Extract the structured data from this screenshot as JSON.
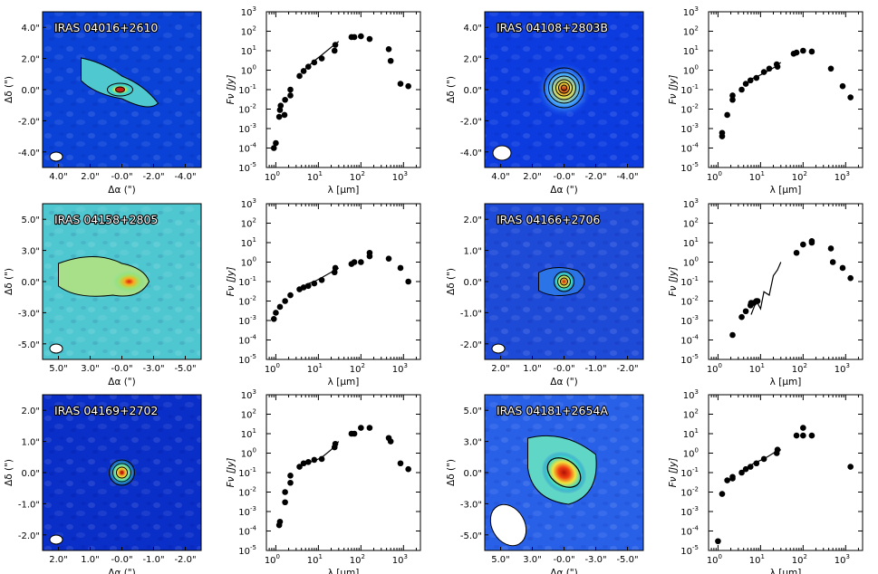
{
  "figure": {
    "image_xlabel": "Δα (\")",
    "image_ylabel": "Δδ (\")",
    "sed_xlabel": "λ [μm]",
    "sed_ylabel": "F_ν [Jy]",
    "colors": {
      "map_low": "#0a2ec8",
      "map_mid": "#3ad9c9",
      "map_high": "#f4e33a",
      "map_peak": "#c61e0e",
      "contour": "#000000",
      "marker": "#000000"
    }
  },
  "panels": [
    {
      "source": "IRAS 04016+2610",
      "xticks": [
        "4.0\"",
        "2.0\"",
        "-0.0\"",
        "-2.0\"",
        "-4.0\""
      ],
      "yticks": [
        "4.0\"",
        "2.0\"",
        "0.0\"",
        "-2.0\"",
        "-4.0\""
      ]
    },
    {
      "source": "IRAS 04108+2803B",
      "xticks": [
        "4.0\"",
        "2.0\"",
        "-0.0\"",
        "-2.0\"",
        "-4.0\""
      ],
      "yticks": [
        "4.0\"",
        "2.0\"",
        "0.0\"",
        "-2.0\"",
        "-4.0\""
      ]
    },
    {
      "source": "IRAS 04158+2805",
      "xticks": [
        "5.0\"",
        "3.0\"",
        "-0.0\"",
        "-3.0\"",
        "-5.0\""
      ],
      "yticks": [
        "5.0\"",
        "3.0\"",
        "0.0\"",
        "-3.0\"",
        "-5.0\""
      ]
    },
    {
      "source": "IRAS 04166+2706",
      "xticks": [
        "2.0\"",
        "1.0\"",
        "-0.0\"",
        "-1.0\"",
        "-2.0\""
      ],
      "yticks": [
        "2.0\"",
        "1.0\"",
        "0.0\"",
        "-1.0\"",
        "-2.0\""
      ]
    },
    {
      "source": "IRAS 04169+2702",
      "xticks": [
        "2.0\"",
        "1.0\"",
        "-0.0\"",
        "-1.0\"",
        "-2.0\""
      ],
      "yticks": [
        "2.0\"",
        "1.0\"",
        "0.0\"",
        "-1.0\"",
        "-2.0\""
      ]
    },
    {
      "source": "IRAS 04181+2654A",
      "xticks": [
        "5.0\"",
        "3.0\"",
        "-0.0\"",
        "-3.0\"",
        "-5.0\""
      ],
      "yticks": [
        "5.0\"",
        "3.0\"",
        "0.0\"",
        "-3.0\"",
        "-5.0\""
      ]
    }
  ],
  "chart_data": [
    {
      "type": "scatter",
      "panel": "IRAS 04016+2610",
      "xscale": "log",
      "yscale": "log",
      "xlabel": "λ [μm]",
      "ylabel": "F_ν [Jy]",
      "xlim": [
        0.6,
        2500
      ],
      "ylim": [
        1e-05,
        1000
      ],
      "x": [
        0.9,
        1.0,
        1.2,
        1.25,
        1.3,
        1.6,
        1.65,
        2.2,
        2.2,
        3.6,
        4.5,
        5.8,
        8.0,
        12,
        24,
        25,
        60,
        70,
        100,
        160,
        450,
        500,
        850,
        1300
      ],
      "y": [
        0.0001,
        0.00018,
        0.004,
        0.009,
        0.015,
        0.005,
        0.03,
        0.1,
        0.05,
        0.5,
        0.9,
        1.5,
        2.5,
        4,
        10,
        20,
        50,
        50,
        55,
        40,
        12,
        3,
        0.2,
        0.15
      ],
      "spectrum": {
        "x": [
          5,
          8,
          12,
          20,
          30
        ],
        "y": [
          1.2,
          3,
          6,
          15,
          30
        ]
      }
    },
    {
      "type": "scatter",
      "panel": "IRAS 04108+2803B",
      "xscale": "log",
      "yscale": "log",
      "xlabel": "λ [μm]",
      "ylabel": "F_ν [Jy]",
      "xlim": [
        0.6,
        2500
      ],
      "ylim": [
        1e-05,
        1000
      ],
      "x": [
        1.25,
        1.25,
        1.65,
        2.2,
        2.2,
        3.6,
        4.5,
        5.8,
        8.0,
        12,
        16,
        24,
        25,
        60,
        70,
        100,
        160,
        450,
        850,
        1300
      ],
      "y": [
        0.0004,
        0.0006,
        0.005,
        0.03,
        0.05,
        0.1,
        0.2,
        0.3,
        0.4,
        0.8,
        1.2,
        2,
        1.5,
        7,
        8,
        10,
        9,
        1.2,
        0.15,
        0.04
      ],
      "spectrum": {
        "x": [
          5,
          8,
          12,
          20,
          30
        ],
        "y": [
          0.3,
          0.45,
          0.7,
          1.3,
          2.5
        ]
      }
    },
    {
      "type": "scatter",
      "panel": "IRAS 04158+2805",
      "xscale": "log",
      "yscale": "log",
      "xlabel": "λ [μm]",
      "ylabel": "F_ν [Jy]",
      "xlim": [
        0.6,
        2500
      ],
      "ylim": [
        1e-05,
        1000
      ],
      "x": [
        0.9,
        1.0,
        1.25,
        1.65,
        2.2,
        3.6,
        4.5,
        5.8,
        8.0,
        12,
        24,
        25,
        60,
        70,
        100,
        160,
        160,
        450,
        850,
        1300
      ],
      "y": [
        0.0012,
        0.0025,
        0.005,
        0.01,
        0.02,
        0.04,
        0.05,
        0.06,
        0.08,
        0.12,
        0.3,
        0.5,
        0.8,
        1,
        1,
        3,
        2,
        1.5,
        0.5,
        0.1
      ],
      "spectrum": {
        "x": [
          5,
          8,
          12,
          20,
          30
        ],
        "y": [
          0.07,
          0.1,
          0.16,
          0.3,
          0.5
        ]
      }
    },
    {
      "type": "scatter",
      "panel": "IRAS 04166+2706",
      "xscale": "log",
      "yscale": "log",
      "xlabel": "λ [μm]",
      "ylabel": "F_ν [Jy]",
      "xlim": [
        0.6,
        2500
      ],
      "ylim": [
        1e-05,
        1000
      ],
      "x": [
        2.2,
        3.6,
        4.5,
        5.8,
        6,
        7,
        8.0,
        8.5,
        70,
        100,
        160,
        160,
        450,
        500,
        850,
        1300
      ],
      "y": [
        0.00018,
        0.0015,
        0.003,
        0.006,
        0.008,
        0.008,
        0.01,
        0.01,
        3,
        8,
        10,
        12,
        5,
        1,
        0.5,
        0.15
      ],
      "spectrum": {
        "x": [
          6,
          8,
          10,
          12,
          16,
          20,
          25,
          30
        ],
        "y": [
          0.002,
          0.01,
          0.004,
          0.03,
          0.02,
          0.2,
          0.4,
          1
        ]
      }
    },
    {
      "type": "scatter",
      "panel": "IRAS 04169+2702",
      "xscale": "log",
      "yscale": "log",
      "xlabel": "λ [μm]",
      "ylabel": "F_ν [Jy]",
      "xlim": [
        0.6,
        2500
      ],
      "ylim": [
        1e-05,
        1000
      ],
      "x": [
        1.2,
        1.25,
        1.65,
        1.65,
        2.2,
        2.2,
        3.6,
        4.5,
        5.8,
        8.0,
        12,
        24,
        25,
        60,
        70,
        100,
        160,
        450,
        500,
        850,
        1300
      ],
      "y": [
        0.0002,
        0.0003,
        0.003,
        0.01,
        0.03,
        0.07,
        0.2,
        0.3,
        0.35,
        0.45,
        0.5,
        2,
        3,
        10,
        10,
        20,
        20,
        6,
        4,
        0.3,
        0.15
      ],
      "spectrum": {
        "x": [
          5,
          8,
          12,
          20,
          30
        ],
        "y": [
          0.3,
          0.4,
          0.6,
          1.5,
          4
        ]
      }
    },
    {
      "type": "scatter",
      "panel": "IRAS 04181+2654A",
      "xscale": "log",
      "yscale": "log",
      "xlabel": "λ [μm]",
      "ylabel": "F_ν [Jy]",
      "xlim": [
        0.6,
        2500
      ],
      "ylim": [
        1e-05,
        1000
      ],
      "x": [
        1.0,
        1.25,
        1.65,
        2.2,
        2.2,
        3.6,
        4.5,
        5.8,
        8.0,
        12,
        24,
        25,
        70,
        100,
        100,
        160,
        1300
      ],
      "y": [
        3e-05,
        0.008,
        0.04,
        0.05,
        0.06,
        0.1,
        0.15,
        0.2,
        0.3,
        0.5,
        1,
        1.5,
        8,
        20,
        8,
        8,
        0.2
      ],
      "spectrum": {
        "x": [
          5,
          8,
          12,
          20,
          30
        ],
        "y": [
          0.2,
          0.35,
          0.5,
          1,
          1.5
        ]
      }
    }
  ]
}
